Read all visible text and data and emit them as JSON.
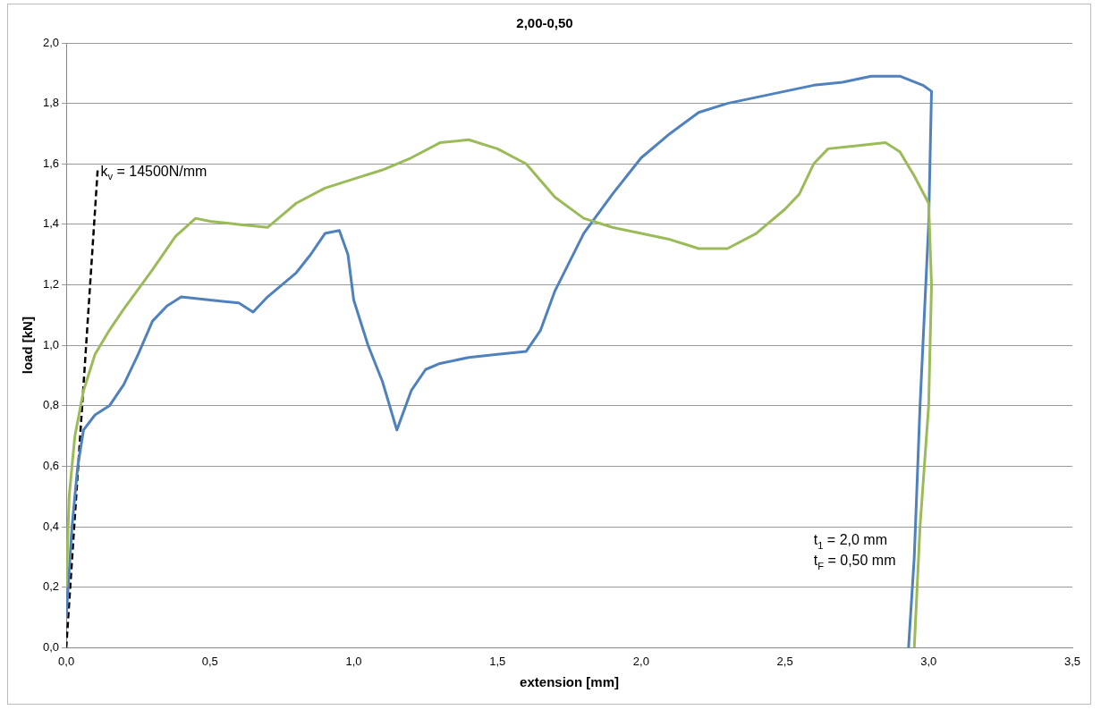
{
  "chart_data": {
    "type": "line",
    "title": "2,00-0,50",
    "xlabel": "extension [mm]",
    "ylabel": "load [kN]",
    "xlim": [
      0,
      3.5
    ],
    "xticks": [
      {
        "value": 0,
        "label": "0,0"
      },
      {
        "value": 0.5,
        "label": "0,5"
      },
      {
        "value": 1,
        "label": "1,0"
      },
      {
        "value": 1.5,
        "label": "1,5"
      },
      {
        "value": 2,
        "label": "2,0"
      },
      {
        "value": 2.5,
        "label": "2,5"
      },
      {
        "value": 3,
        "label": "3,0"
      },
      {
        "value": 3.5,
        "label": "3,5"
      }
    ],
    "ylim": [
      0,
      2
    ],
    "yticks": [
      {
        "value": 0,
        "label": "0,0"
      },
      {
        "value": 0.2,
        "label": "0,2"
      },
      {
        "value": 0.4,
        "label": "0,4"
      },
      {
        "value": 0.6,
        "label": "0,6"
      },
      {
        "value": 0.8,
        "label": "0,8"
      },
      {
        "value": 1,
        "label": "1,0"
      },
      {
        "value": 1.2,
        "label": "1,2"
      },
      {
        "value": 1.4,
        "label": "1,4"
      },
      {
        "value": 1.6,
        "label": "1,6"
      },
      {
        "value": 1.8,
        "label": "1,8"
      },
      {
        "value": 2,
        "label": "2,0"
      }
    ],
    "grid": "y",
    "legend": false,
    "marker": "none",
    "line_style": "solid",
    "series": [
      {
        "color": "#9bbb59",
        "x": [
          0,
          0.01,
          0.03,
          0.06,
          0.1,
          0.15,
          0.2,
          0.3,
          0.38,
          0.45,
          0.5,
          0.6,
          0.7,
          0.75,
          0.8,
          0.9,
          1.0,
          1.1,
          1.2,
          1.3,
          1.4,
          1.5,
          1.6,
          1.7,
          1.8,
          1.9,
          2.0,
          2.1,
          2.2,
          2.3,
          2.4,
          2.5,
          2.55,
          2.6,
          2.65,
          2.75,
          2.85,
          2.9,
          2.95,
          3.0,
          3.01,
          3.0,
          2.97,
          2.95
        ],
        "values": [
          0.2,
          0.5,
          0.7,
          0.85,
          0.97,
          1.05,
          1.12,
          1.25,
          1.36,
          1.42,
          1.41,
          1.4,
          1.39,
          1.43,
          1.47,
          1.52,
          1.55,
          1.58,
          1.62,
          1.67,
          1.68,
          1.65,
          1.6,
          1.49,
          1.42,
          1.39,
          1.37,
          1.35,
          1.32,
          1.32,
          1.37,
          1.45,
          1.5,
          1.6,
          1.65,
          1.66,
          1.67,
          1.64,
          1.56,
          1.47,
          1.2,
          0.8,
          0.4,
          0.0
        ]
      },
      {
        "color": "#4f81bd",
        "x": [
          0,
          0.02,
          0.04,
          0.06,
          0.1,
          0.15,
          0.2,
          0.25,
          0.3,
          0.35,
          0.4,
          0.5,
          0.6,
          0.65,
          0.7,
          0.8,
          0.85,
          0.9,
          0.95,
          0.98,
          1.0,
          1.05,
          1.1,
          1.15,
          1.2,
          1.25,
          1.3,
          1.4,
          1.5,
          1.6,
          1.65,
          1.7,
          1.8,
          1.9,
          2.0,
          2.1,
          2.2,
          2.3,
          2.4,
          2.5,
          2.6,
          2.7,
          2.8,
          2.9,
          2.98,
          3.01,
          3.0,
          2.97,
          2.95,
          2.93
        ],
        "values": [
          0.1,
          0.4,
          0.6,
          0.72,
          0.77,
          0.8,
          0.87,
          0.97,
          1.08,
          1.13,
          1.16,
          1.15,
          1.14,
          1.11,
          1.16,
          1.24,
          1.3,
          1.37,
          1.38,
          1.3,
          1.15,
          1.0,
          0.88,
          0.72,
          0.85,
          0.92,
          0.94,
          0.96,
          0.97,
          0.98,
          1.05,
          1.18,
          1.37,
          1.5,
          1.62,
          1.7,
          1.77,
          1.8,
          1.82,
          1.84,
          1.86,
          1.87,
          1.89,
          1.89,
          1.86,
          1.84,
          1.4,
          0.8,
          0.3,
          0.0
        ]
      },
      {
        "type": "line",
        "color": "#000000",
        "line_style": "dashed",
        "x": [
          0,
          0.11
        ],
        "values": [
          0,
          1.59
        ]
      }
    ],
    "annotations": [
      {
        "text": "k$_{v}$ = 14500N/mm",
        "x": 0.11,
        "y": 1.59
      },
      "t$_{1}$ = 2,0 mm",
      "t$_{F}$ = 0,50 mm"
    ]
  }
}
